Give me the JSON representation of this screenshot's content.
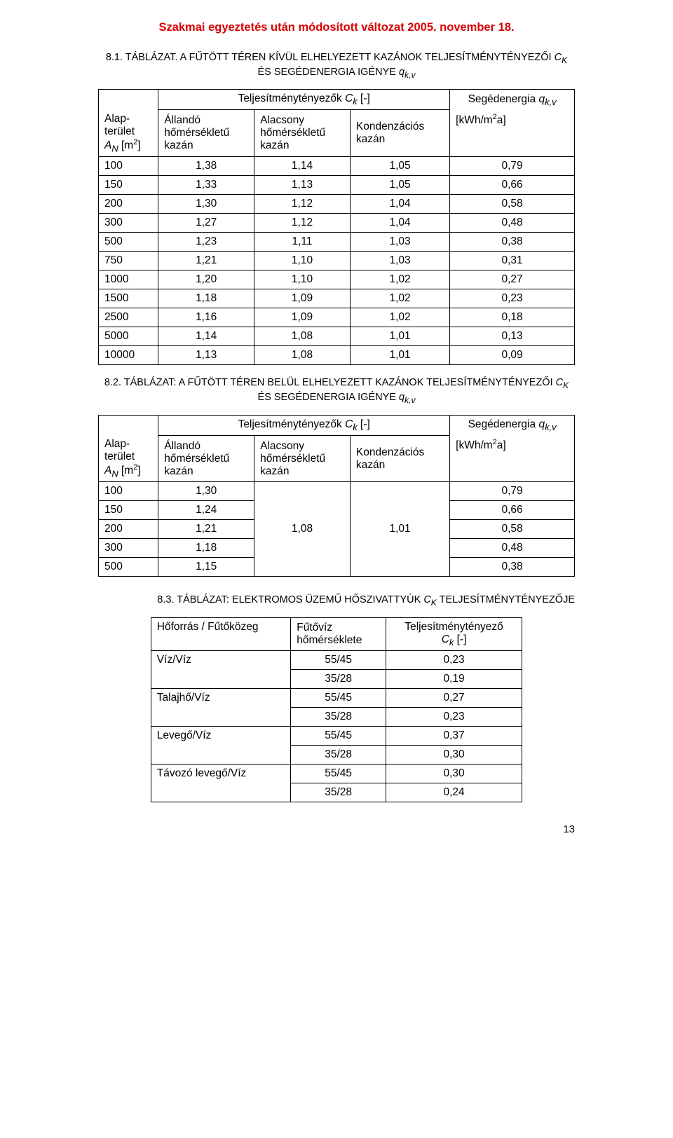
{
  "header": "Szakmai egyeztetés után módosított változat 2005. november 18.",
  "caption1_a": "8.1. TÁBLÁZAT.",
  "caption1_b": " A FŰTÖTT TÉREN KÍVÜL ELHELYEZETT KAZÁNOK TELJESÍTMÉNYTÉNYEZŐI ",
  "caption1_c": " ÉS SEGÉDENERGIA IGÉNYE ",
  "caption1_ck": "C",
  "caption1_ck_sub": "K",
  "caption1_q": "q",
  "caption1_q_sub": "k,v",
  "t1": {
    "head_perf": "Teljesítménytényezők ",
    "head_perf_var": "C",
    "head_perf_sub": "k",
    "head_perf_unit": " [-]",
    "head_aux": "Segédenergia ",
    "head_aux_var": "q",
    "head_aux_sub": "k,v",
    "col_area_a": "Alap-",
    "col_area_b": "terület",
    "col_area_c": "A",
    "col_area_c_sub": "N",
    "col_area_unit": " [m",
    "col_area_unit_sup": "2",
    "col_area_unit_end": "]",
    "col_const_a": "Állandó",
    "col_const_b": "hőmérsékletű",
    "col_const_c": "kazán",
    "col_low_a": "Alacsony",
    "col_low_b": "hőmérsékletű",
    "col_low_c": "kazán",
    "col_cond_a": "Kondenzációs",
    "col_cond_b": "kazán",
    "col_kwh_a": "[kWh/m",
    "col_kwh_sup": "2",
    "col_kwh_b": "a]",
    "rows": [
      [
        "100",
        "1,38",
        "1,14",
        "1,05",
        "0,79"
      ],
      [
        "150",
        "1,33",
        "1,13",
        "1,05",
        "0,66"
      ],
      [
        "200",
        "1,30",
        "1,12",
        "1,04",
        "0,58"
      ],
      [
        "300",
        "1,27",
        "1,12",
        "1,04",
        "0,48"
      ],
      [
        "500",
        "1,23",
        "1,11",
        "1,03",
        "0,38"
      ],
      [
        "750",
        "1,21",
        "1,10",
        "1,03",
        "0,31"
      ],
      [
        "1000",
        "1,20",
        "1,10",
        "1,02",
        "0,27"
      ],
      [
        "1500",
        "1,18",
        "1,09",
        "1,02",
        "0,23"
      ],
      [
        "2500",
        "1,16",
        "1,09",
        "1,02",
        "0,18"
      ],
      [
        "5000",
        "1,14",
        "1,08",
        "1,01",
        "0,13"
      ],
      [
        "10000",
        "1,13",
        "1,08",
        "1,01",
        "0,09"
      ]
    ]
  },
  "caption2_a": "8.2. TÁBLÁZAT:",
  "caption2_b": " A FŰTÖTT TÉREN BELÜL ELHELYEZETT KAZÁNOK TELJESÍTMÉNYTÉNYEZŐI ",
  "caption2_c": " ÉS SEGÉDENERGIA IGÉNYE ",
  "t2": {
    "merged_low": "1,08",
    "merged_cond": "1,01",
    "rows": [
      [
        "100",
        "1,30",
        "0,79"
      ],
      [
        "150",
        "1,24",
        "0,66"
      ],
      [
        "200",
        "1,21",
        "0,58"
      ],
      [
        "300",
        "1,18",
        "0,48"
      ],
      [
        "500",
        "1,15",
        "0,38"
      ]
    ]
  },
  "caption3_a": "8.3. TÁBLÁZAT:",
  "caption3_b": " ELEKTROMOS ÜZEMŰ HŐSZIVATTYÚK ",
  "caption3_c": " TELJESÍTMÉNYTÉNYEZŐJE",
  "t3": {
    "h_src": "Hőforrás / Fűtőközeg",
    "h_temp_a": "Fűtővíz",
    "h_temp_b": "hőmérséklete",
    "h_perf_a": "Teljesítménytényező",
    "h_perf_b_var": "C",
    "h_perf_b_sub": "k",
    "h_perf_b_unit": " [-]",
    "src1": "Víz/Víz",
    "src2": "Talajhő/Víz",
    "src3": "Levegő/Víz",
    "src4": "Távozó levegő/Víz",
    "r": [
      [
        "55/45",
        "0,23"
      ],
      [
        "35/28",
        "0,19"
      ],
      [
        "55/45",
        "0,27"
      ],
      [
        "35/28",
        "0,23"
      ],
      [
        "55/45",
        "0,37"
      ],
      [
        "35/28",
        "0,30"
      ],
      [
        "55/45",
        "0,30"
      ],
      [
        "35/28",
        "0,24"
      ]
    ]
  },
  "page_number": "13"
}
